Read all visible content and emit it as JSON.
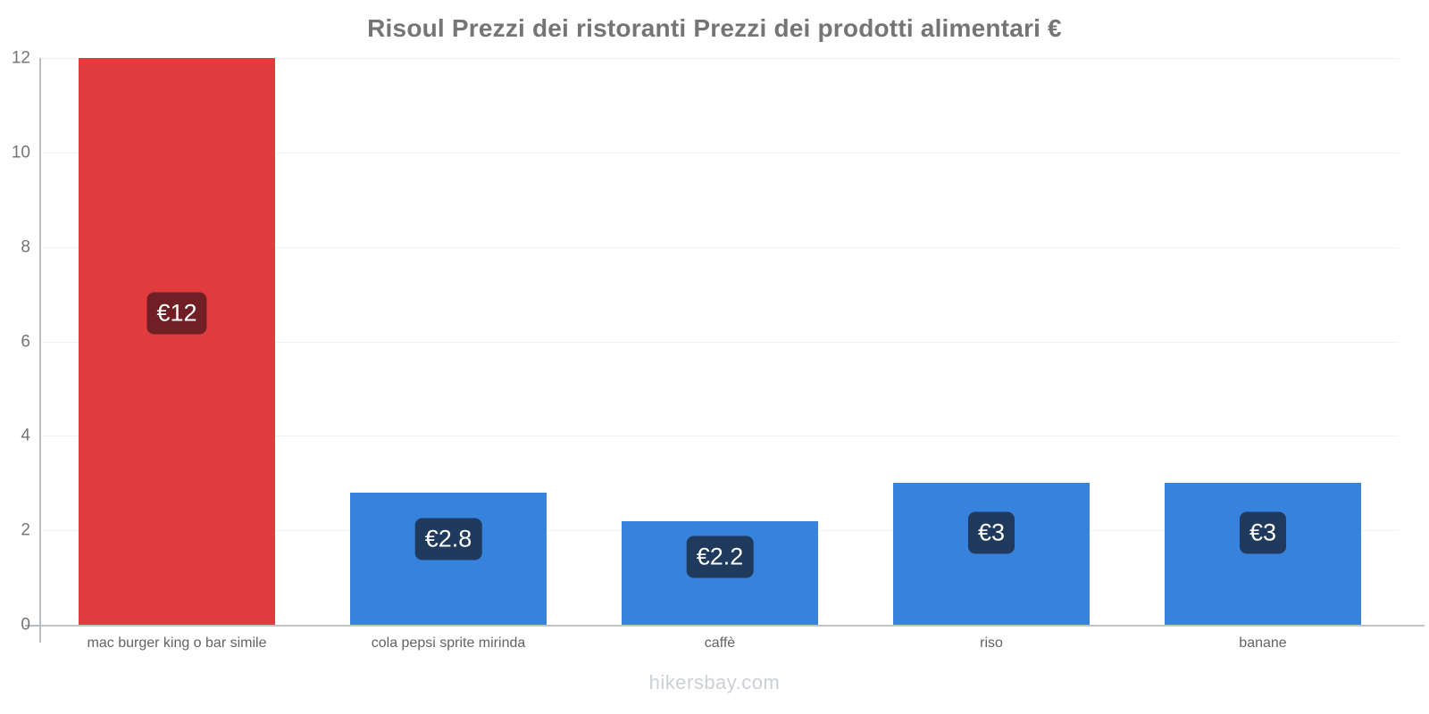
{
  "title": "Risoul Prezzi dei ristoranti Prezzi dei prodotti alimentari €",
  "footer": "hikersbay.com",
  "colors": {
    "bar_red": "#e13b3e",
    "bar_blue": "#3782dc",
    "badge_dark_red": "#701f24",
    "badge_dark_navy": "#1f3a5c",
    "axis_gray": "#b9bcc0",
    "gridline": "#f2f2f2",
    "title_gray": "#757575",
    "watermark_gray": "#ccd0d6"
  },
  "chart_data": {
    "type": "bar",
    "title": "Risoul Prezzi dei ristoranti Prezzi dei prodotti alimentari €",
    "categories": [
      "mac burger king o bar simile",
      "cola pepsi sprite mirinda",
      "caffè",
      "riso",
      "banane"
    ],
    "values": [
      12,
      2.8,
      2.2,
      3,
      3
    ],
    "bar_labels": [
      "€12",
      "€2.8",
      "€2.2",
      "€3",
      "€3"
    ],
    "bar_colors": [
      "#e13b3e",
      "#3782dc",
      "#3782dc",
      "#3782dc",
      "#3782dc"
    ],
    "label_bg_colors": [
      "#701f24",
      "#1f3a5c",
      "#1f3a5c",
      "#1f3a5c",
      "#1f3a5c"
    ],
    "xlabel": "",
    "ylabel": "",
    "ylim": [
      0,
      12
    ],
    "yticks": [
      0,
      2,
      4,
      6,
      8,
      10,
      12
    ],
    "grid": true,
    "legend": false,
    "currency": "€",
    "watermark": "hikersbay.com"
  }
}
